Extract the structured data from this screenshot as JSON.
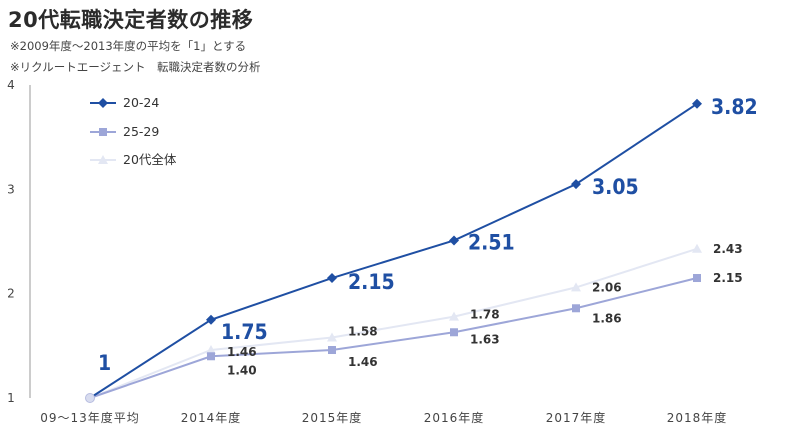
{
  "title": "20代転職決定者数の推移",
  "notes": [
    "※2009年度～2013年度の平均を「1」とする",
    "※リクルートエージェント　転職決定者数の分析"
  ],
  "colors": {
    "s2024": "#1f4fa3",
    "s2529": "#9da6d8",
    "all20s": "#e3e7f3",
    "axis": "#999999"
  },
  "chart_data": {
    "type": "line",
    "title": "20代転職決定者数の推移",
    "categories": [
      "09～13年度平均",
      "2014年度",
      "2015年度",
      "2016年度",
      "2017年度",
      "2018年度"
    ],
    "yticks": [
      "1",
      "2",
      "3",
      "4"
    ],
    "ylim": [
      1,
      4
    ],
    "legend_position": "top-left",
    "grid": false,
    "series": [
      {
        "name": "20-24",
        "marker": "diamond",
        "values": [
          1,
          1.75,
          2.15,
          2.51,
          3.05,
          3.82
        ],
        "labels": [
          "1",
          "1.75",
          "2.15",
          "2.51",
          "3.05",
          "3.82"
        ]
      },
      {
        "name": "25-29",
        "marker": "square",
        "values": [
          1,
          1.4,
          1.46,
          1.63,
          1.86,
          2.15
        ],
        "labels": [
          "",
          "1.40",
          "1.46",
          "1.63",
          "1.86",
          "2.15"
        ]
      },
      {
        "name": "20代全体",
        "marker": "triangle",
        "values": [
          1,
          1.46,
          1.58,
          1.78,
          2.06,
          2.43
        ],
        "labels": [
          "",
          "1.46",
          "1.58",
          "1.78",
          "2.06",
          "2.43"
        ]
      }
    ]
  }
}
